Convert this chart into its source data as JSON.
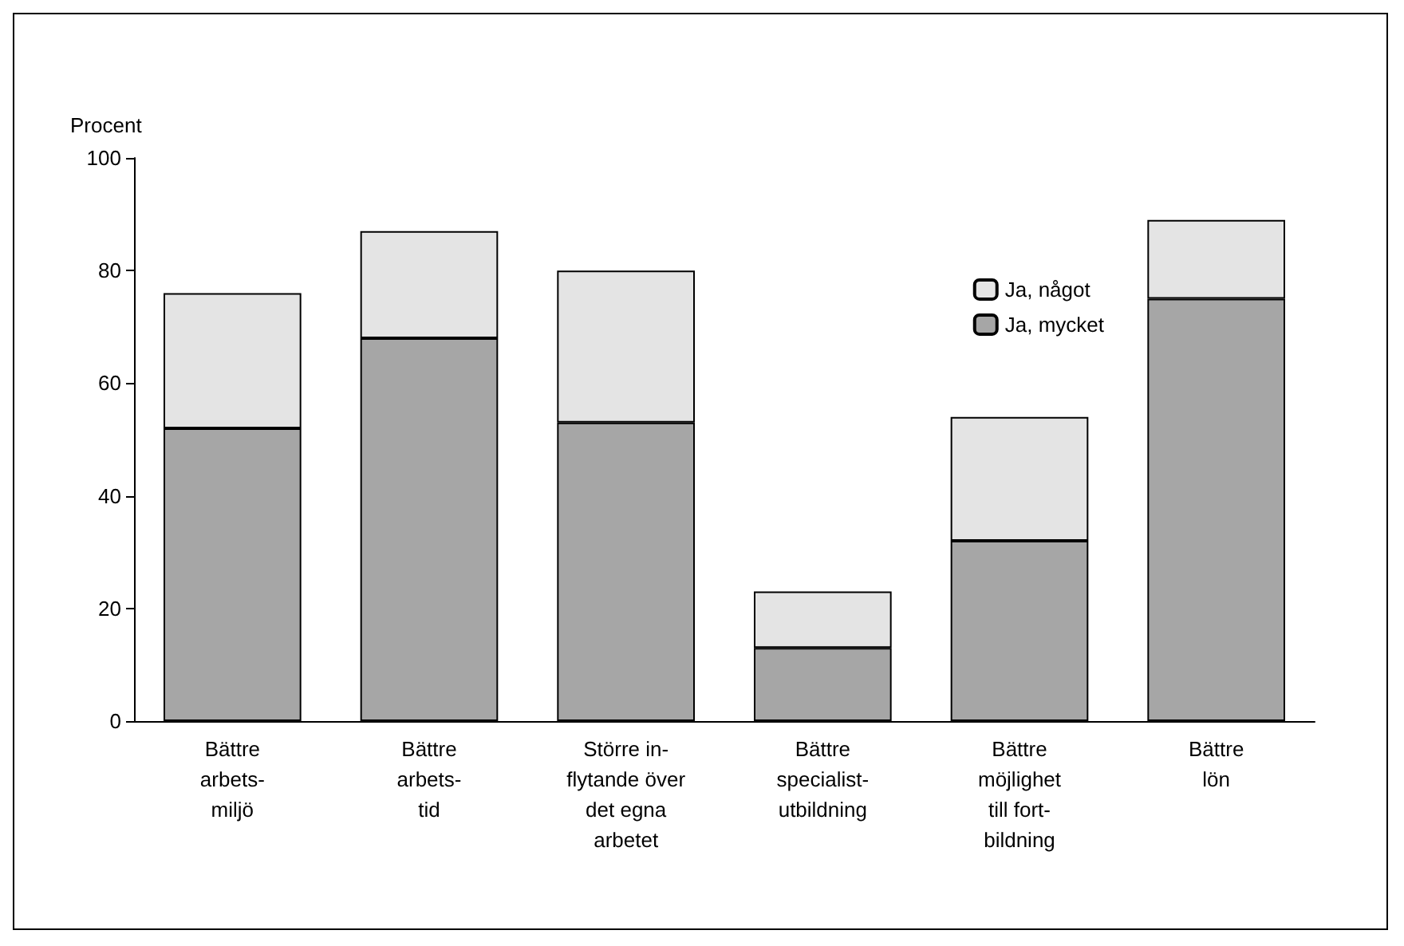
{
  "chart_data": {
    "type": "bar",
    "stacked": true,
    "ylabel": "Procent",
    "categories": [
      "Bättre\narbets-\nmiljö",
      "Bättre\narbets-\ntid",
      "Större in-\nflytande över\ndet egna\narbetet",
      "Bättre\nspecialist-\nutbildning",
      "Bättre\nmöjlighet\ntill fort-\nbildning",
      "Bättre\nlön"
    ],
    "series": [
      {
        "name": "Ja, mycket",
        "color": "#a6a6a6",
        "values": [
          52,
          68,
          53,
          13,
          32,
          75
        ]
      },
      {
        "name": "Ja, något",
        "color": "#e4e4e4",
        "values": [
          24,
          19,
          27,
          10,
          22,
          14
        ]
      }
    ],
    "ylim": [
      0,
      100
    ],
    "yticks": [
      0,
      20,
      40,
      60,
      80,
      100
    ],
    "grid": false,
    "legend": "top right"
  }
}
